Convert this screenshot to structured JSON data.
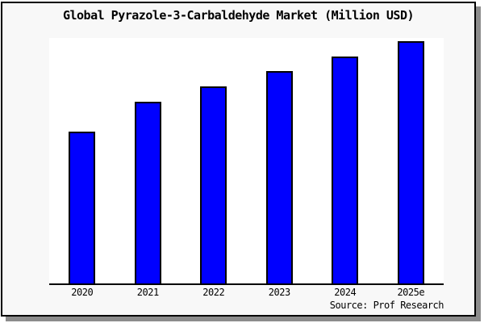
{
  "chart": {
    "title": "Global Pyrazole-3-Carbaldehyde Market (Million USD)",
    "source": "Source: Prof Research"
  },
  "chart_data": {
    "type": "bar",
    "title": "Global Pyrazole-3-Carbaldehyde Market (Million USD)",
    "categories": [
      "2020",
      "2021",
      "2022",
      "2023",
      "2024",
      "2025e"
    ],
    "values": [
      10,
      12,
      13,
      14,
      15,
      16
    ],
    "xlabel": "",
    "ylabel": "",
    "ylim": [
      0,
      16.2
    ],
    "grid": false,
    "legend": false,
    "value_axis_labeled": false,
    "annotations": [
      "Source: Prof Research"
    ]
  },
  "colors": {
    "bar_fill": "#0000ff",
    "bar_border": "#000000",
    "card_background": "#f8f8f8",
    "plot_background": "#ffffff",
    "frame": "#000000",
    "shadow": "#8c8c8c",
    "text": "#000000"
  }
}
